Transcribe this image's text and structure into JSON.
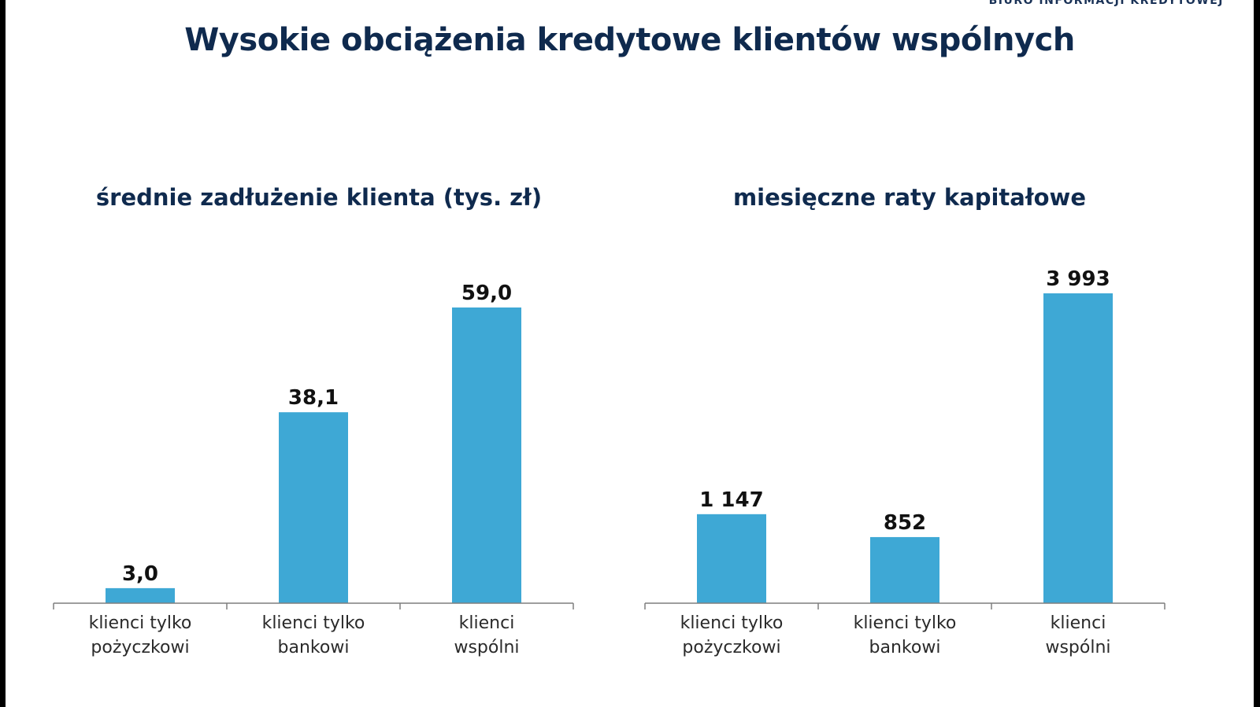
{
  "brand": "BIURO INFORMACJI KREDYTOWEJ",
  "title": "Wysokie obciążenia kredytowe klientów wspólnych",
  "colors": {
    "bar": "#3ea8d5",
    "axis": "#7f7f7f",
    "title": "#0f2a4e"
  },
  "chart_data": [
    {
      "type": "bar",
      "title": "średnie zadłużenie klienta (tys. zł)",
      "categories": [
        [
          "klienci tylko",
          "pożyczkowi"
        ],
        [
          "klienci tylko",
          "bankowi"
        ],
        [
          "klienci",
          "wspólni"
        ]
      ],
      "values": [
        3.0,
        38.1,
        59.0
      ],
      "value_labels": [
        "3,0",
        "38,1",
        "59,0"
      ],
      "ylim": [
        0,
        59.0
      ],
      "grid": false,
      "legend": "none"
    },
    {
      "type": "bar",
      "title": "miesięczne raty kapitałowe",
      "categories": [
        [
          "klienci tylko",
          "pożyczkowi"
        ],
        [
          "klienci tylko",
          "bankowi"
        ],
        [
          "klienci",
          "wspólni"
        ]
      ],
      "values": [
        1147,
        852,
        3993
      ],
      "value_labels": [
        "1 147",
        "852",
        "3 993"
      ],
      "ylim": [
        0,
        3993
      ],
      "grid": false,
      "legend": "none"
    }
  ]
}
